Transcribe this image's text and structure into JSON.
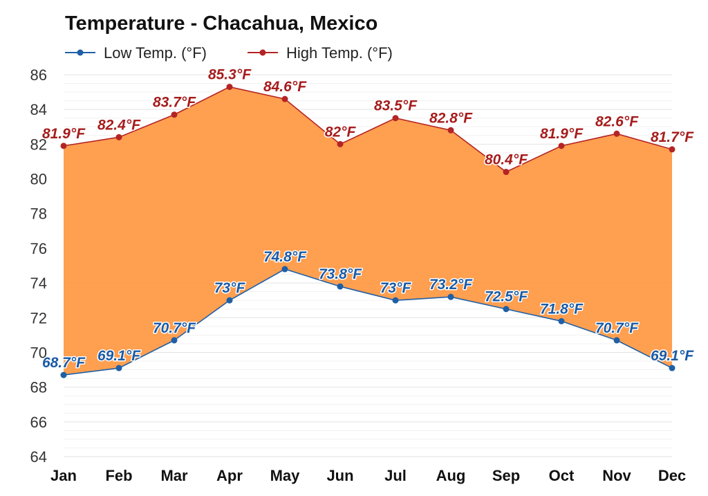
{
  "chart_data": {
    "type": "area",
    "title": "Temperature - Chacahua, Mexico",
    "categories": [
      "Jan",
      "Feb",
      "Mar",
      "Apr",
      "May",
      "Jun",
      "Jul",
      "Aug",
      "Sep",
      "Oct",
      "Nov",
      "Dec"
    ],
    "series": [
      {
        "name": "Low Temp. (°F)",
        "color": "#1f5fa6",
        "label_color": "#1a5aa6",
        "values": [
          68.7,
          69.1,
          70.7,
          73,
          74.8,
          73.8,
          73,
          73.2,
          72.5,
          71.8,
          70.7,
          69.1
        ],
        "labels": [
          "68.7°F",
          "69.1°F",
          "70.7°F",
          "73°F",
          "74.8°F",
          "73.8°F",
          "73°F",
          "73.2°F",
          "72.5°F",
          "71.8°F",
          "70.7°F",
          "69.1°F"
        ]
      },
      {
        "name": "High Temp. (°F)",
        "color": "#b42424",
        "label_color": "#a61c1c",
        "values": [
          81.9,
          82.4,
          83.7,
          85.3,
          84.6,
          82,
          83.5,
          82.8,
          80.4,
          81.9,
          82.6,
          81.7
        ],
        "labels": [
          "81.9°F",
          "82.4°F",
          "83.7°F",
          "85.3°F",
          "84.6°F",
          "82°F",
          "83.5°F",
          "82.8°F",
          "80.4°F",
          "81.9°F",
          "82.6°F",
          "81.7°F"
        ]
      }
    ],
    "fill_color": "#ff9a47",
    "ylim": [
      64,
      86
    ],
    "yticks": [
      "64",
      "66",
      "68",
      "70",
      "72",
      "74",
      "76",
      "78",
      "80",
      "82",
      "84",
      "86"
    ],
    "grid": true,
    "legend_position": "top-left"
  }
}
